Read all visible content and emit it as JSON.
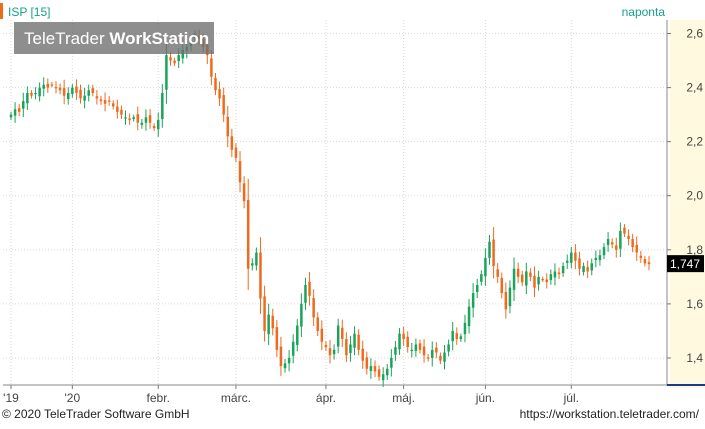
{
  "header": {
    "symbol_label": "ISP [15]",
    "period_label": "naponta",
    "watermark_regular": "TeleTrader ",
    "watermark_bold": "WorkStation"
  },
  "footer": {
    "copyright": "© 2020 TeleTrader Software GmbH",
    "url": "https://workstation.teletrader.com/"
  },
  "colors": {
    "up": "#1aa35a",
    "down": "#f06a1e",
    "accent_teal": "#17a08c",
    "last_price_bg": "#000000",
    "axis_right_bg": "#fff9e0"
  },
  "chart_data": {
    "type": "candlestick",
    "title": "ISP [15]",
    "interval": "naponta",
    "ylim": [
      1.3,
      2.65
    ],
    "y_ticks": [
      1.4,
      1.6,
      1.8,
      2.0,
      2.2,
      2.4,
      2.6
    ],
    "y_tick_labels": [
      "1,4",
      "1,6",
      "1,8",
      "2,0",
      "2,2",
      "2,4",
      "2,6"
    ],
    "x_labels": [
      {
        "label": "'19",
        "index": 0
      },
      {
        "label": "'20",
        "index": 15
      },
      {
        "label": "febr.",
        "index": 36
      },
      {
        "label": "márc.",
        "index": 55
      },
      {
        "label": "ápr.",
        "index": 77
      },
      {
        "label": "máj.",
        "index": 96
      },
      {
        "label": "jún.",
        "index": 116
      },
      {
        "label": "júl.",
        "index": 137
      }
    ],
    "last_price": 1.747,
    "last_price_label": "1,747",
    "grid": true,
    "closes": [
      2.3,
      2.32,
      2.31,
      2.35,
      2.38,
      2.37,
      2.38,
      2.4,
      2.41,
      2.4,
      2.41,
      2.4,
      2.39,
      2.37,
      2.38,
      2.4,
      2.38,
      2.36,
      2.37,
      2.39,
      2.38,
      2.36,
      2.35,
      2.34,
      2.35,
      2.33,
      2.31,
      2.3,
      2.29,
      2.28,
      2.29,
      2.27,
      2.27,
      2.29,
      2.27,
      2.25,
      2.28,
      2.38,
      2.52,
      2.5,
      2.49,
      2.52,
      2.54,
      2.55,
      2.57,
      2.6,
      2.58,
      2.55,
      2.52,
      2.44,
      2.39,
      2.36,
      2.3,
      2.22,
      2.17,
      2.14,
      2.05,
      1.98,
      1.73,
      1.75,
      1.79,
      1.62,
      1.5,
      1.56,
      1.51,
      1.43,
      1.37,
      1.38,
      1.4,
      1.46,
      1.52,
      1.6,
      1.67,
      1.63,
      1.55,
      1.5,
      1.46,
      1.44,
      1.41,
      1.43,
      1.52,
      1.47,
      1.41,
      1.45,
      1.49,
      1.43,
      1.39,
      1.36,
      1.37,
      1.35,
      1.33,
      1.34,
      1.36,
      1.4,
      1.44,
      1.49,
      1.47,
      1.44,
      1.43,
      1.45,
      1.43,
      1.41,
      1.4,
      1.43,
      1.42,
      1.39,
      1.42,
      1.45,
      1.5,
      1.47,
      1.48,
      1.53,
      1.59,
      1.64,
      1.67,
      1.71,
      1.77,
      1.83,
      1.74,
      1.7,
      1.64,
      1.58,
      1.66,
      1.73,
      1.7,
      1.68,
      1.72,
      1.7,
      1.66,
      1.7,
      1.69,
      1.68,
      1.71,
      1.72,
      1.71,
      1.74,
      1.76,
      1.79,
      1.76,
      1.73,
      1.74,
      1.72,
      1.75,
      1.77,
      1.78,
      1.81,
      1.84,
      1.82,
      1.8,
      1.87,
      1.86,
      1.84,
      1.81,
      1.79,
      1.77,
      1.75,
      1.747
    ]
  }
}
